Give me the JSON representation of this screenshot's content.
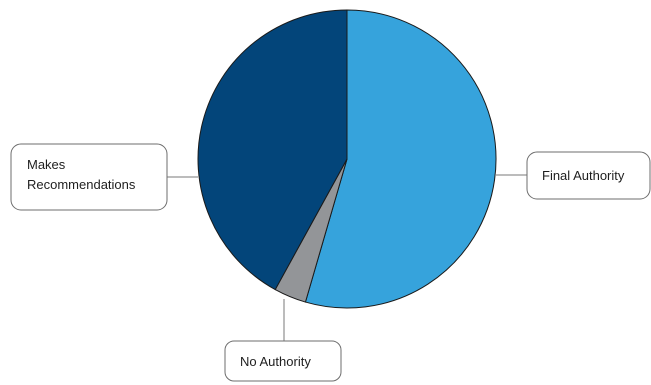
{
  "chart_data": {
    "type": "pie",
    "slices": [
      {
        "label": "Final Authority",
        "value": 54.5,
        "color": "#36a3dc"
      },
      {
        "label": "No Authority",
        "value": 3.5,
        "color": "#939598"
      },
      {
        "label": "Makes Recommendations",
        "value": 42.0,
        "color": "#03457a"
      }
    ],
    "start_angle_deg": 0,
    "direction": "clockwise",
    "legend": "callout labels",
    "label_lines": {
      "makes_recommendations": [
        "Makes",
        "Recommendations"
      ]
    }
  }
}
